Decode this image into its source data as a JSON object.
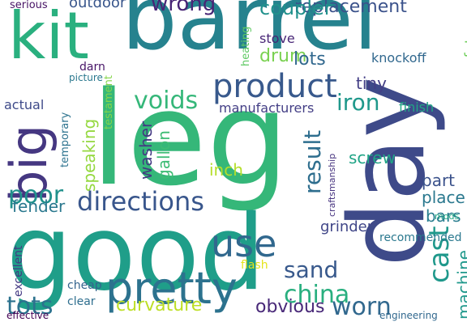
{
  "words": [
    {
      "text": "leg",
      "color": "#35b779"
    },
    {
      "text": "day",
      "color": "#3e4a89"
    },
    {
      "text": "good",
      "color": "#1f9e89"
    },
    {
      "text": "barrel",
      "color": "#26828e"
    },
    {
      "text": "kit",
      "color": "#2ab07f"
    },
    {
      "text": "big",
      "color": "#453781"
    },
    {
      "text": "pretty",
      "color": "#2c728e"
    },
    {
      "text": "product",
      "color": "#38598c"
    },
    {
      "text": "use",
      "color": "#31688e"
    },
    {
      "text": "directions",
      "color": "#39568c"
    },
    {
      "text": "poor",
      "color": "#21918c"
    },
    {
      "text": "china",
      "color": "#29af7f"
    },
    {
      "text": "worn",
      "color": "#31688e"
    },
    {
      "text": "cast",
      "color": "#1f988b"
    },
    {
      "text": "iron",
      "color": "#1f988b"
    },
    {
      "text": "result",
      "color": "#2e6e8e"
    },
    {
      "text": "voids",
      "color": "#35b779"
    },
    {
      "text": "tots",
      "color": "#2c728e"
    },
    {
      "text": "wrong",
      "color": "#482576"
    },
    {
      "text": "sand",
      "color": "#38598c"
    },
    {
      "text": "replacement",
      "color": "#3b528b"
    },
    {
      "text": "coupler",
      "color": "#21918c"
    },
    {
      "text": "curvature",
      "color": "#bddf26"
    },
    {
      "text": "obvious",
      "color": "#482878"
    },
    {
      "text": "outdoor",
      "color": "#39568c"
    },
    {
      "text": "drum",
      "color": "#7ad151"
    },
    {
      "text": "lots",
      "color": "#31688e"
    },
    {
      "text": "tiny",
      "color": "#433e85"
    },
    {
      "text": "inch",
      "color": "#b5de2b"
    },
    {
      "text": "screw",
      "color": "#20a486"
    },
    {
      "text": "washer",
      "color": "#443983"
    },
    {
      "text": "gallon",
      "color": "#3dbc74"
    },
    {
      "text": "speaking",
      "color": "#95d840"
    },
    {
      "text": "fender",
      "color": "#2a788e"
    },
    {
      "text": "part",
      "color": "#3b528b"
    },
    {
      "text": "place",
      "color": "#2a788e"
    },
    {
      "text": "bars",
      "color": "#287d8e"
    },
    {
      "text": "grinder",
      "color": "#404688"
    },
    {
      "text": "machine",
      "color": "#1f988b"
    },
    {
      "text": "safety",
      "color": "#6ece58"
    },
    {
      "text": "finish",
      "color": "#21a685"
    },
    {
      "text": "stove",
      "color": "#482576"
    },
    {
      "text": "knockoff",
      "color": "#31688e"
    },
    {
      "text": "manufacturers",
      "color": "#433e85"
    },
    {
      "text": "actual",
      "color": "#3e4a89"
    },
    {
      "text": "darn",
      "color": "#481668"
    },
    {
      "text": "picture",
      "color": "#2a788e"
    },
    {
      "text": "heating",
      "color": "#5ec962"
    },
    {
      "text": "testament",
      "color": "#85d54a"
    },
    {
      "text": "temporary",
      "color": "#2c728e"
    },
    {
      "text": "serious",
      "color": "#471365"
    },
    {
      "text": "excellent",
      "color": "#443983"
    },
    {
      "text": "cheap",
      "color": "#33638d"
    },
    {
      "text": "clear",
      "color": "#2e6e8e"
    },
    {
      "text": "effective",
      "color": "#440154"
    },
    {
      "text": "flash",
      "color": "#e5e419"
    },
    {
      "text": "recommended",
      "color": "#2a788e"
    },
    {
      "text": "engineering",
      "color": "#31688e"
    },
    {
      "text": "craftsmanship",
      "color": "#46337f"
    },
    {
      "text": "mods",
      "color": "#22a884"
    }
  ]
}
